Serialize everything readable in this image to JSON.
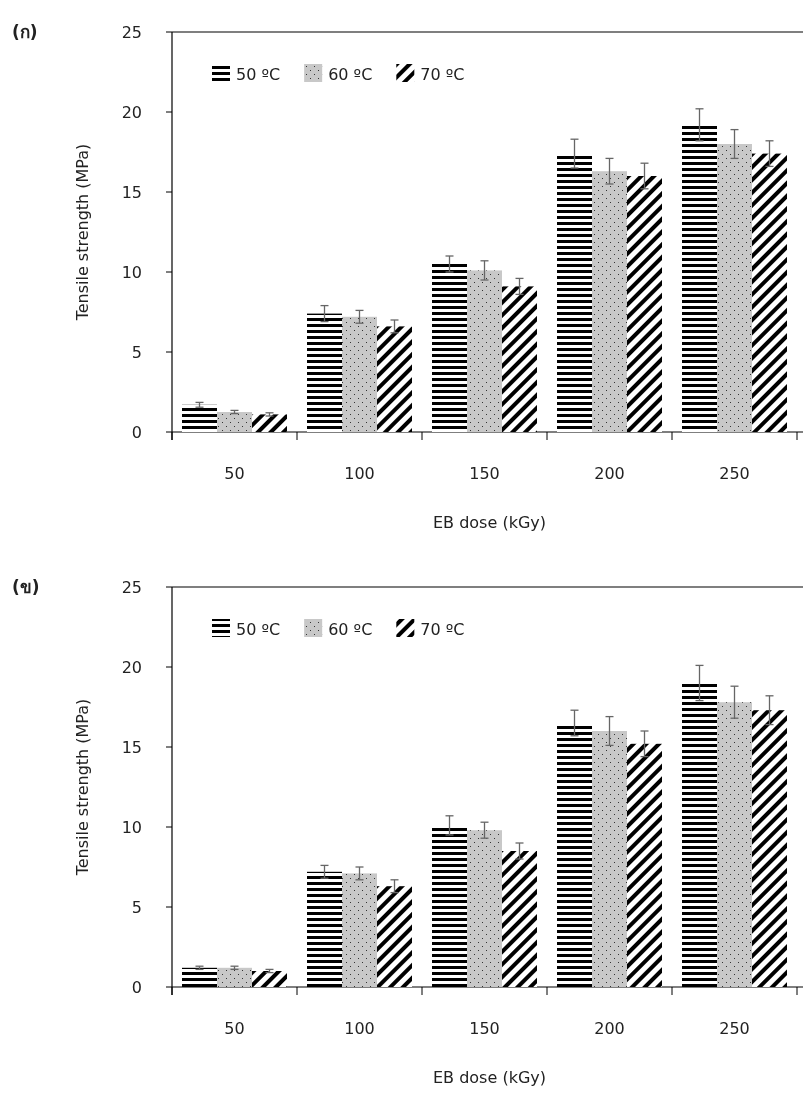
{
  "chart_data": [
    {
      "type": "bar",
      "title": "(ก)",
      "xlabel": "EB dose (kGy)",
      "ylabel": "Tensile strength (MPa)",
      "categories": [
        "50",
        "100",
        "150",
        "200",
        "250"
      ],
      "ylim": [
        0,
        25
      ],
      "yticks": [
        0,
        5,
        10,
        15,
        20,
        25
      ],
      "grid": false,
      "legend": "top left",
      "series": [
        {
          "name": "50 ºC",
          "color": "#000000",
          "values": [
            1.7,
            7.4,
            10.5,
            17.4,
            19.2
          ],
          "errors": [
            0.15,
            0.5,
            0.5,
            0.9,
            1.0
          ]
        },
        {
          "name": "60 ºC",
          "color": "#c8c8c8",
          "values": [
            1.25,
            7.2,
            10.1,
            16.3,
            18.0
          ],
          "errors": [
            0.1,
            0.4,
            0.6,
            0.8,
            0.9
          ]
        },
        {
          "name": "70 ºC",
          "color": "#000000",
          "values": [
            1.1,
            6.6,
            9.1,
            16.0,
            17.4
          ],
          "errors": [
            0.1,
            0.4,
            0.5,
            0.8,
            0.8
          ]
        }
      ]
    },
    {
      "type": "bar",
      "title": "(ข)",
      "xlabel": "EB dose (kGy)",
      "ylabel": "Tensile strength (MPa)",
      "categories": [
        "50",
        "100",
        "150",
        "200",
        "250"
      ],
      "ylim": [
        0,
        25
      ],
      "yticks": [
        0,
        5,
        10,
        15,
        20,
        25
      ],
      "grid": false,
      "legend": "top left",
      "series": [
        {
          "name": "50 ºC",
          "color": "#000000",
          "values": [
            1.2,
            7.2,
            10.1,
            16.5,
            19.0
          ],
          "errors": [
            0.1,
            0.4,
            0.6,
            0.8,
            1.1
          ]
        },
        {
          "name": "60 ºC",
          "color": "#c8c8c8",
          "values": [
            1.2,
            7.1,
            9.8,
            16.0,
            17.8
          ],
          "errors": [
            0.1,
            0.4,
            0.5,
            0.9,
            1.0
          ]
        },
        {
          "name": "70 ºC",
          "color": "#000000",
          "values": [
            1.0,
            6.3,
            8.5,
            15.2,
            17.3
          ],
          "errors": [
            0.1,
            0.4,
            0.5,
            0.8,
            0.9
          ]
        }
      ]
    }
  ]
}
